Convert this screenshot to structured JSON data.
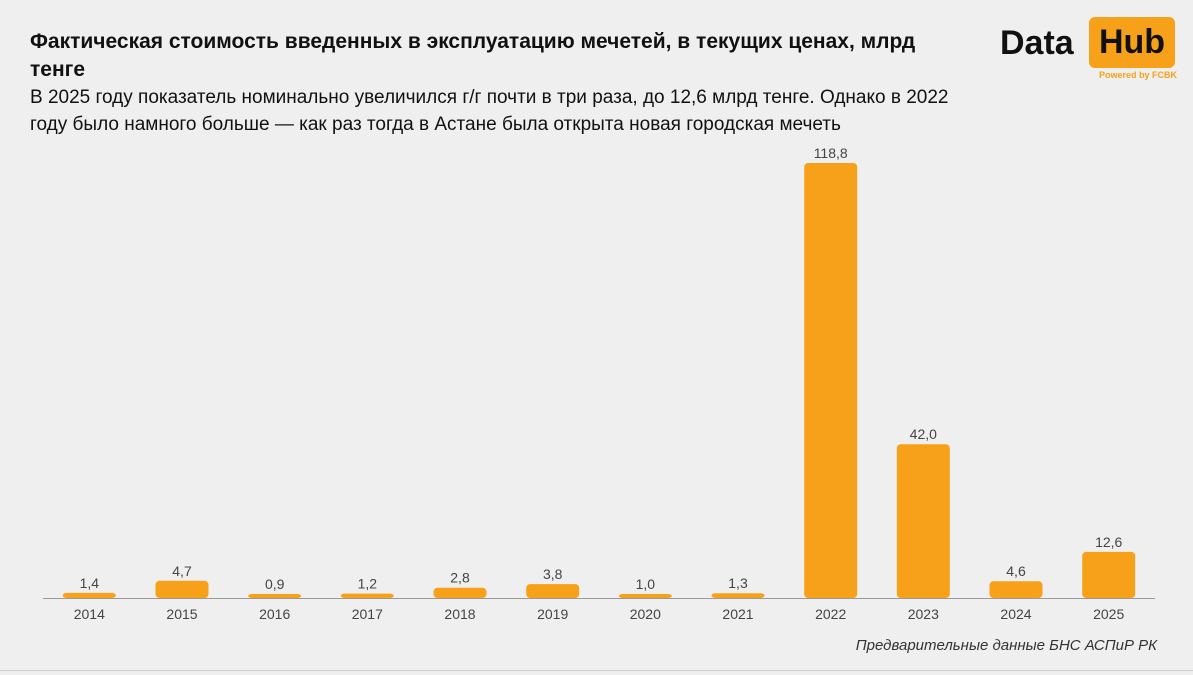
{
  "header": {
    "title": "Фактическая стоимость введенных в эксплуатацию мечетей, в текущих ценах, млрд тенге",
    "subtitle": "В 2025 году показатель номинально увеличился г/г почти в три раза, до 12,6 млрд тенге. Однако в 2022 году было намного больше — как раз тогда в Астане была открыта новая городская мечеть"
  },
  "logo": {
    "data": "Data",
    "hub": "Hub",
    "powered": "Powered by FCBK",
    "accent_color": "#f7a11a"
  },
  "source": "Предварительные данные БНС АСПиР РК",
  "chart_data": {
    "type": "bar",
    "title": "Фактическая стоимость введенных в эксплуатацию мечетей, в текущих ценах, млрд тенге",
    "xlabel": "",
    "ylabel": "",
    "categories": [
      "2014",
      "2015",
      "2016",
      "2017",
      "2018",
      "2019",
      "2020",
      "2021",
      "2022",
      "2023",
      "2024",
      "2025"
    ],
    "values": [
      1.4,
      4.7,
      0.9,
      1.2,
      2.8,
      3.8,
      1.0,
      1.3,
      118.8,
      42.0,
      4.6,
      12.6
    ],
    "value_labels": [
      "1,4",
      "4,7",
      "0,9",
      "1,2",
      "2,8",
      "3,8",
      "1,0",
      "1,3",
      "118,8",
      "42,0",
      "4,6",
      "12,6"
    ],
    "ylim": [
      0,
      118.8
    ],
    "grid": false,
    "legend": "none",
    "bar_color": "#f7a11a"
  }
}
